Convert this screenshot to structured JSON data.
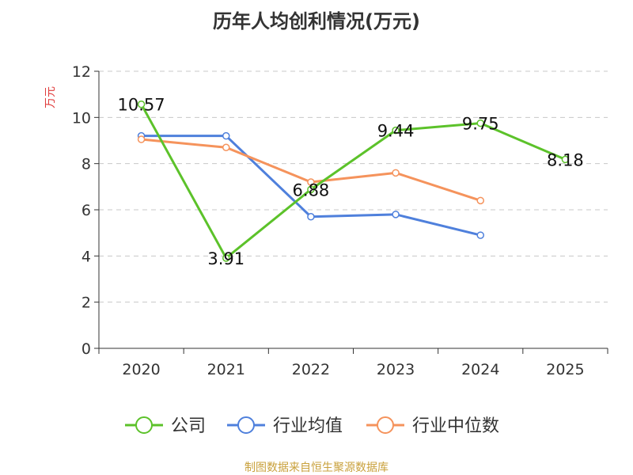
{
  "chart_data": {
    "type": "line",
    "title": "历年人均创利情况(万元)",
    "ylabel": "万元",
    "xlabel": "",
    "categories": [
      "2020",
      "2021",
      "2022",
      "2023",
      "2024",
      "2025"
    ],
    "ylim": [
      0,
      12
    ],
    "yticks": [
      0,
      2,
      4,
      6,
      8,
      10,
      12
    ],
    "grid": true,
    "legend_position": "bottom",
    "series": [
      {
        "name": "公司",
        "color": "#5cc22a",
        "values": [
          10.57,
          3.91,
          6.88,
          9.44,
          9.75,
          8.18
        ],
        "labels": [
          "10.57",
          "3.91",
          "6.88",
          "9.44",
          "9.75",
          "8.18"
        ]
      },
      {
        "name": "行业均值",
        "color": "#4f80dc",
        "values": [
          9.2,
          9.2,
          5.7,
          5.8,
          4.9,
          null
        ],
        "labels": null
      },
      {
        "name": "行业中位数",
        "color": "#f5935c",
        "values": [
          9.05,
          8.7,
          7.2,
          7.6,
          6.4,
          null
        ],
        "labels": null
      }
    ]
  },
  "footer": {
    "source": "制图数据来自恒生聚源数据库",
    "source_color": "#c9a13c"
  },
  "ylabel_color": "#e03c3c"
}
